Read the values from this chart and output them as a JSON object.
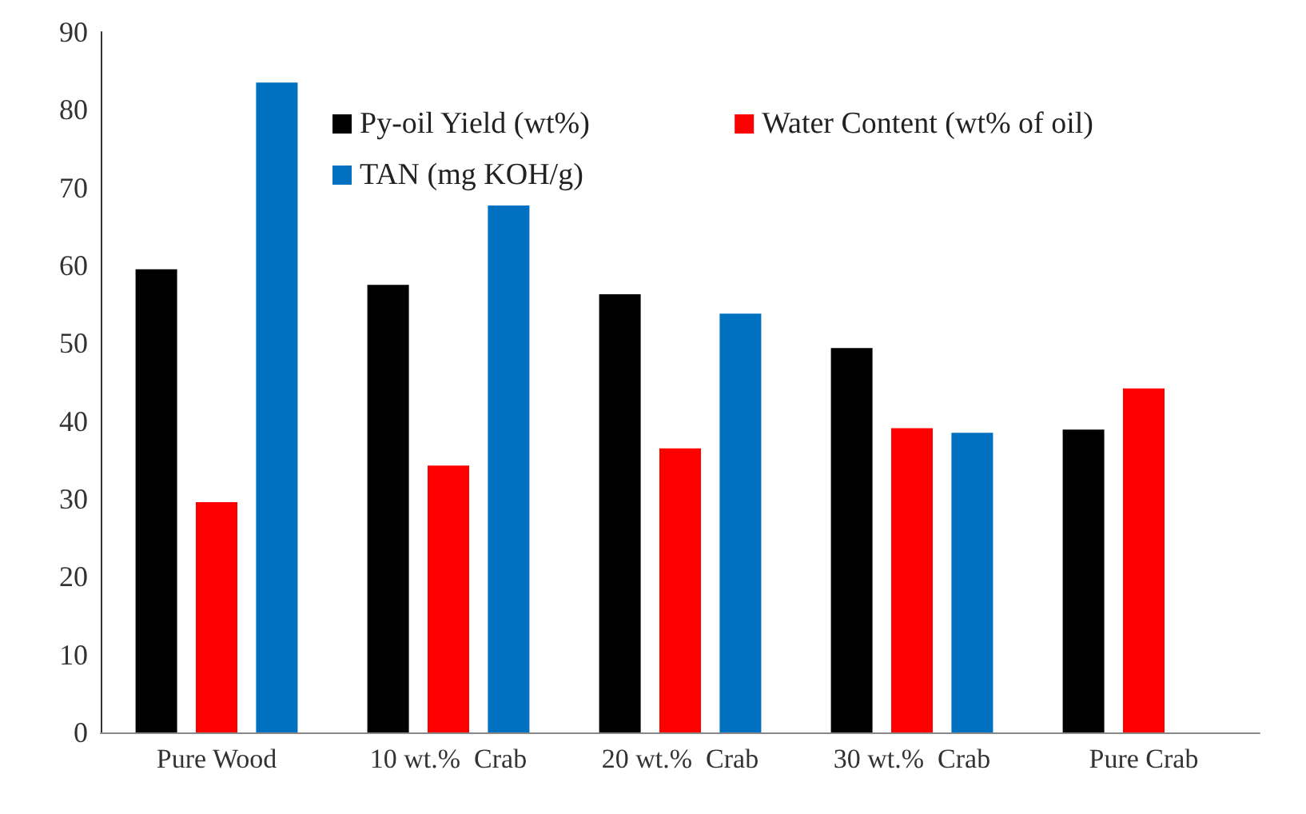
{
  "chart_data": {
    "type": "bar",
    "categories": [
      "Pure Wood",
      "10 wt.%  Crab",
      "20 wt.%  Crab",
      "30 wt.%  Crab",
      "Pure Crab"
    ],
    "series": [
      {
        "name": "Py-oil Yield (wt%)",
        "color": "#000000",
        "values": [
          59.5,
          57.5,
          56.3,
          49.4,
          38.9
        ]
      },
      {
        "name": "Water Content (wt% of oil)",
        "color": "#ff0000",
        "values": [
          29.6,
          34.3,
          36.5,
          39.1,
          44.2
        ]
      },
      {
        "name": "TAN (mg KOH/g)",
        "color": "#0070c0",
        "values": [
          83.5,
          67.7,
          53.8,
          38.5,
          null
        ]
      }
    ],
    "ylim": [
      0,
      90
    ],
    "yticks": [
      0,
      10,
      20,
      30,
      40,
      50,
      60,
      70,
      80,
      90
    ],
    "grid": false,
    "legend": "top"
  }
}
